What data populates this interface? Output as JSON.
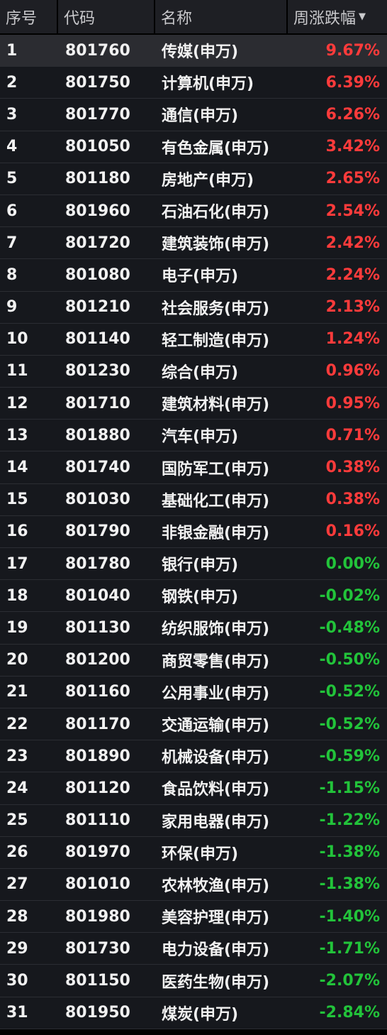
{
  "header": {
    "rank_label": "序号",
    "code_label": "代码",
    "name_label": "名称",
    "change_label": "周涨跌幅",
    "sort_icon": "caret-down-icon"
  },
  "colors": {
    "up": "#ff3b3b",
    "down": "#22c33a",
    "header_bg": "#1e1f24",
    "row_bg": "#16181d",
    "selected_row_bg": "#2b2c31"
  },
  "selected_index": 0,
  "rows": [
    {
      "rank": "1",
      "code": "801760",
      "name": "传媒(申万)",
      "change": "9.67%",
      "dir": "up"
    },
    {
      "rank": "2",
      "code": "801750",
      "name": "计算机(申万)",
      "change": "6.39%",
      "dir": "up"
    },
    {
      "rank": "3",
      "code": "801770",
      "name": "通信(申万)",
      "change": "6.26%",
      "dir": "up"
    },
    {
      "rank": "4",
      "code": "801050",
      "name": "有色金属(申万)",
      "change": "3.42%",
      "dir": "up"
    },
    {
      "rank": "5",
      "code": "801180",
      "name": "房地产(申万)",
      "change": "2.65%",
      "dir": "up"
    },
    {
      "rank": "6",
      "code": "801960",
      "name": "石油石化(申万)",
      "change": "2.54%",
      "dir": "up"
    },
    {
      "rank": "7",
      "code": "801720",
      "name": "建筑装饰(申万)",
      "change": "2.42%",
      "dir": "up"
    },
    {
      "rank": "8",
      "code": "801080",
      "name": "电子(申万)",
      "change": "2.24%",
      "dir": "up"
    },
    {
      "rank": "9",
      "code": "801210",
      "name": "社会服务(申万)",
      "change": "2.13%",
      "dir": "up"
    },
    {
      "rank": "10",
      "code": "801140",
      "name": "轻工制造(申万)",
      "change": "1.24%",
      "dir": "up"
    },
    {
      "rank": "11",
      "code": "801230",
      "name": "综合(申万)",
      "change": "0.96%",
      "dir": "up"
    },
    {
      "rank": "12",
      "code": "801710",
      "name": "建筑材料(申万)",
      "change": "0.95%",
      "dir": "up"
    },
    {
      "rank": "13",
      "code": "801880",
      "name": "汽车(申万)",
      "change": "0.71%",
      "dir": "up"
    },
    {
      "rank": "14",
      "code": "801740",
      "name": "国防军工(申万)",
      "change": "0.38%",
      "dir": "up"
    },
    {
      "rank": "15",
      "code": "801030",
      "name": "基础化工(申万)",
      "change": "0.38%",
      "dir": "up"
    },
    {
      "rank": "16",
      "code": "801790",
      "name": "非银金融(申万)",
      "change": "0.16%",
      "dir": "up"
    },
    {
      "rank": "17",
      "code": "801780",
      "name": "银行(申万)",
      "change": "0.00%",
      "dir": "flat"
    },
    {
      "rank": "18",
      "code": "801040",
      "name": "钢铁(申万)",
      "change": "-0.02%",
      "dir": "down"
    },
    {
      "rank": "19",
      "code": "801130",
      "name": "纺织服饰(申万)",
      "change": "-0.48%",
      "dir": "down"
    },
    {
      "rank": "20",
      "code": "801200",
      "name": "商贸零售(申万)",
      "change": "-0.50%",
      "dir": "down"
    },
    {
      "rank": "21",
      "code": "801160",
      "name": "公用事业(申万)",
      "change": "-0.52%",
      "dir": "down"
    },
    {
      "rank": "22",
      "code": "801170",
      "name": "交通运输(申万)",
      "change": "-0.52%",
      "dir": "down"
    },
    {
      "rank": "23",
      "code": "801890",
      "name": "机械设备(申万)",
      "change": "-0.59%",
      "dir": "down"
    },
    {
      "rank": "24",
      "code": "801120",
      "name": "食品饮料(申万)",
      "change": "-1.15%",
      "dir": "down"
    },
    {
      "rank": "25",
      "code": "801110",
      "name": "家用电器(申万)",
      "change": "-1.22%",
      "dir": "down"
    },
    {
      "rank": "26",
      "code": "801970",
      "name": "环保(申万)",
      "change": "-1.38%",
      "dir": "down"
    },
    {
      "rank": "27",
      "code": "801010",
      "name": "农林牧渔(申万)",
      "change": "-1.38%",
      "dir": "down"
    },
    {
      "rank": "28",
      "code": "801980",
      "name": "美容护理(申万)",
      "change": "-1.40%",
      "dir": "down"
    },
    {
      "rank": "29",
      "code": "801730",
      "name": "电力设备(申万)",
      "change": "-1.71%",
      "dir": "down"
    },
    {
      "rank": "30",
      "code": "801150",
      "name": "医药生物(申万)",
      "change": "-2.07%",
      "dir": "down"
    },
    {
      "rank": "31",
      "code": "801950",
      "name": "煤炭(申万)",
      "change": "-2.84%",
      "dir": "down"
    }
  ]
}
